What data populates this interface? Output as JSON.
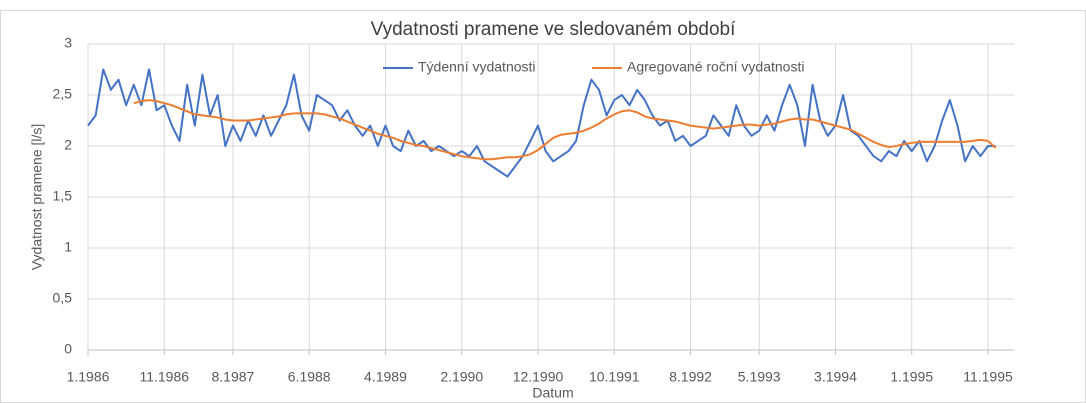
{
  "chart_data": {
    "type": "line",
    "title": "Vydatnosti pramene ve sledovaném období",
    "x_label": "Datum",
    "y_label": "Vydatnost pramene [l/s]",
    "categories": [
      "1.1986",
      null,
      null,
      null,
      null,
      null,
      null,
      null,
      null,
      null,
      "11.1986",
      null,
      null,
      null,
      null,
      null,
      null,
      null,
      null,
      "8.1987",
      null,
      null,
      null,
      null,
      null,
      null,
      null,
      null,
      null,
      "6.1988",
      null,
      null,
      null,
      null,
      null,
      null,
      null,
      null,
      null,
      "4.1989",
      null,
      null,
      null,
      null,
      null,
      null,
      null,
      null,
      null,
      "2.1990",
      null,
      null,
      null,
      null,
      null,
      null,
      null,
      null,
      null,
      "12.1990",
      null,
      null,
      null,
      null,
      null,
      null,
      null,
      null,
      null,
      "10.1991",
      null,
      null,
      null,
      null,
      null,
      null,
      null,
      null,
      null,
      "8.1992",
      null,
      null,
      null,
      null,
      null,
      null,
      null,
      null,
      "5.1993",
      null,
      null,
      null,
      null,
      null,
      null,
      null,
      null,
      null,
      "3.1994",
      null,
      null,
      null,
      null,
      null,
      null,
      null,
      null,
      null,
      "1.1995",
      null,
      null,
      null,
      null,
      null,
      null,
      null,
      null,
      null,
      "11.1995",
      null
    ],
    "series": [
      {
        "name": "Týdenní vydatnosti",
        "color": "#4472c4",
        "values": [
          2.2,
          2.3,
          2.75,
          2.55,
          2.65,
          2.4,
          2.6,
          2.4,
          2.75,
          2.35,
          2.4,
          2.2,
          2.05,
          2.6,
          2.2,
          2.7,
          2.3,
          2.5,
          2.0,
          2.2,
          2.05,
          2.25,
          2.1,
          2.3,
          2.1,
          2.25,
          2.4,
          2.7,
          2.3,
          2.15,
          2.5,
          2.45,
          2.4,
          2.25,
          2.35,
          2.2,
          2.1,
          2.2,
          2.0,
          2.2,
          2.0,
          1.95,
          2.15,
          2.0,
          2.05,
          1.95,
          2.0,
          1.95,
          1.9,
          1.95,
          1.9,
          2.0,
          1.85,
          1.8,
          1.75,
          1.7,
          1.8,
          1.9,
          2.05,
          2.2,
          1.95,
          1.85,
          1.9,
          1.95,
          2.05,
          2.4,
          2.65,
          2.55,
          2.3,
          2.45,
          2.5,
          2.4,
          2.55,
          2.45,
          2.3,
          2.2,
          2.25,
          2.05,
          2.1,
          2.0,
          2.05,
          2.1,
          2.3,
          2.2,
          2.1,
          2.4,
          2.2,
          2.1,
          2.15,
          2.3,
          2.15,
          2.4,
          2.6,
          2.4,
          2.0,
          2.6,
          2.25,
          2.1,
          2.2,
          2.5,
          2.15,
          2.1,
          2.0,
          1.9,
          1.85,
          1.95,
          1.9,
          2.05,
          1.95,
          2.05,
          1.85,
          2.0,
          2.25,
          2.45,
          2.2,
          1.85,
          2.0,
          1.9,
          2.0,
          2.0
        ]
      },
      {
        "name": "Agregované roční vydatnosti",
        "color": "#ed7d31",
        "values": [
          null,
          null,
          null,
          null,
          null,
          null,
          2.42,
          2.44,
          2.45,
          2.44,
          2.42,
          2.4,
          2.37,
          2.34,
          2.31,
          2.3,
          2.29,
          2.28,
          2.26,
          2.25,
          2.25,
          2.25,
          2.26,
          2.27,
          2.28,
          2.29,
          2.31,
          2.32,
          2.32,
          2.32,
          2.32,
          2.31,
          2.29,
          2.27,
          2.24,
          2.21,
          2.18,
          2.15,
          2.12,
          2.1,
          2.08,
          2.05,
          2.03,
          2.01,
          2.0,
          1.98,
          1.96,
          1.94,
          1.92,
          1.9,
          1.89,
          1.88,
          1.87,
          1.87,
          1.88,
          1.89,
          1.89,
          1.9,
          1.92,
          1.96,
          2.02,
          2.08,
          2.11,
          2.12,
          2.13,
          2.15,
          2.18,
          2.22,
          2.27,
          2.31,
          2.34,
          2.35,
          2.33,
          2.29,
          2.27,
          2.26,
          2.25,
          2.24,
          2.22,
          2.2,
          2.19,
          2.18,
          2.17,
          2.18,
          2.19,
          2.2,
          2.21,
          2.21,
          2.2,
          2.21,
          2.22,
          2.24,
          2.26,
          2.27,
          2.26,
          2.26,
          2.24,
          2.22,
          2.2,
          2.18,
          2.16,
          2.12,
          2.08,
          2.04,
          2.01,
          1.99,
          2.0,
          2.02,
          2.03,
          2.04,
          2.04,
          2.04,
          2.04,
          2.04,
          2.04,
          2.04,
          2.05,
          2.06,
          2.05,
          1.98
        ]
      }
    ],
    "ylim": [
      0,
      3
    ],
    "yticks": [
      0,
      {
        "value": 0.5,
        "label": "0,5"
      },
      1,
      {
        "value": 1.5,
        "label": "1,5"
      },
      2,
      {
        "value": 2.5,
        "label": "2,5"
      },
      3
    ],
    "grid": true,
    "legend": "top"
  }
}
